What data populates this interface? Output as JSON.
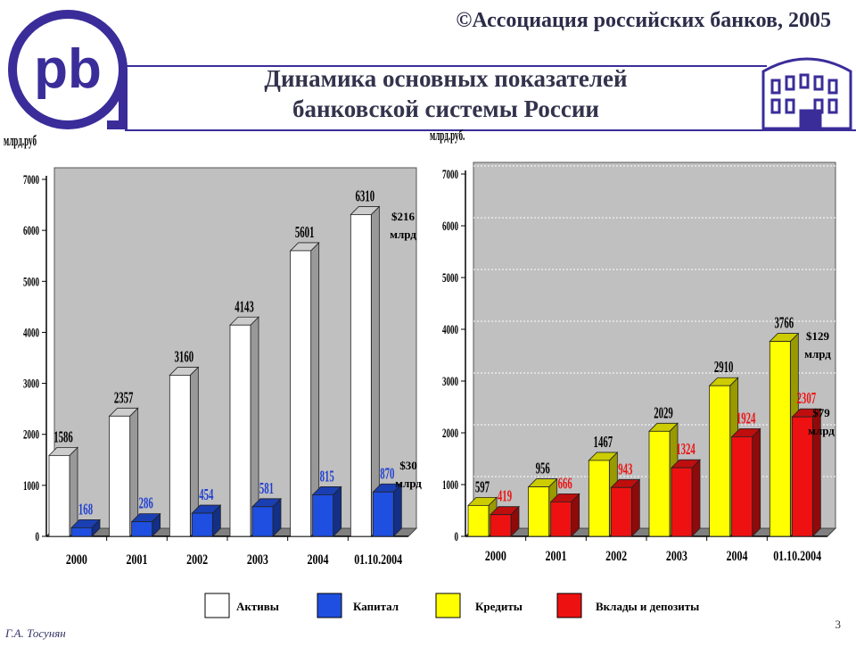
{
  "copyright": "©Ассоциация российских банков, 2005",
  "title": [
    "Динамика основных показателей",
    "банковской системы России"
  ],
  "author": "Г.А. Тосунян",
  "page_number": "3",
  "chart_data": [
    {
      "type": "bar3d",
      "y_label": "млрд.руб",
      "categories": [
        "2000",
        "2001",
        "2002",
        "2003",
        "2004",
        "01.10.2004"
      ],
      "series": [
        {
          "name": "Активы",
          "color": "#ffffff",
          "label_color": "#000000",
          "values": [
            1586,
            2357,
            3160,
            4143,
            5601,
            6310
          ]
        },
        {
          "name": "Капитал",
          "color": "#1f4fe0",
          "label_color": "#1f3fd0",
          "values": [
            168,
            286,
            454,
            581,
            815,
            870
          ]
        }
      ],
      "ylim": [
        0,
        7000
      ],
      "yticks": [
        0,
        1000,
        2000,
        3000,
        4000,
        5000,
        6000,
        7000
      ],
      "grid": false,
      "annotations": [
        [
          "$216",
          "млрд"
        ],
        [
          "$30",
          "млрд"
        ]
      ]
    },
    {
      "type": "bar3d",
      "y_label": "млрд.руб.",
      "categories": [
        "2000",
        "2001",
        "2002",
        "2003",
        "2004",
        "01.10.2004"
      ],
      "series": [
        {
          "name": "Кредиты",
          "color": "#ffff00",
          "label_color": "#000000",
          "values": [
            597,
            956,
            1467,
            2029,
            2910,
            3766
          ]
        },
        {
          "name": "Вклады и депозиты",
          "color": "#ee1111",
          "label_color": "#ee1111",
          "values": [
            419,
            666,
            943,
            1324,
            1924,
            2307
          ]
        }
      ],
      "ylim": [
        0,
        7000
      ],
      "yticks": [
        0,
        1000,
        2000,
        3000,
        4000,
        5000,
        6000,
        7000
      ],
      "grid": true,
      "annotations": [
        [
          "$129",
          "млрд"
        ],
        [
          "$79",
          "млрд"
        ]
      ]
    }
  ]
}
